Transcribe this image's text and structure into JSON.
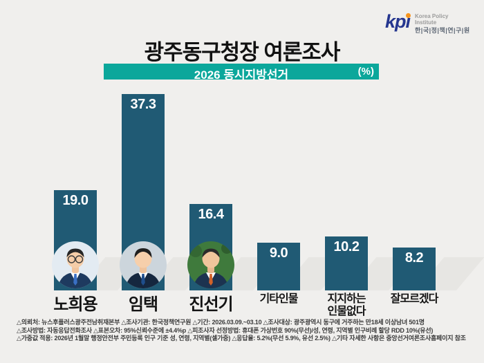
{
  "logo": {
    "acronym": "kp",
    "acronym_i": "ı",
    "name_en_line1": "Korea Policy",
    "name_en_line2": "Institute",
    "name_kr": "한|국|정|책|연|구|원",
    "brand_blue": "#25368f",
    "brand_orange": "#f7941d"
  },
  "header": {
    "title": "광주동구청장 여론조사",
    "banner_label": "2026 동시지방선거",
    "unit": "(%)",
    "banner_color": "#0ba79b"
  },
  "chart_data": {
    "type": "bar",
    "title": "광주동구청장 여론조사",
    "subtitle": "2026 동시지방선거",
    "unit": "%",
    "categories": [
      "노희용",
      "임택",
      "진선기",
      "기타인물",
      "지지하는 인물없다",
      "잘모르겠다"
    ],
    "values": [
      19.0,
      37.3,
      16.4,
      9.0,
      10.2,
      8.2
    ],
    "value_labels": [
      "19.0",
      "37.3",
      "16.4",
      "9.0",
      "10.2",
      "8.2"
    ],
    "display_labels": [
      "노희용",
      "임택",
      "진선기",
      "기타인물",
      "지지하는\n인물없다",
      "잘모르겠다"
    ],
    "has_photo": [
      true,
      true,
      true,
      false,
      false,
      false
    ],
    "bar_color": "#205a74",
    "value_label_color": "#ffffff",
    "ylim": [
      0,
      40
    ],
    "grid": false,
    "legend": "none"
  },
  "footnotes": [
    "△의뢰처: 뉴스후플러스광주전남취재본부  △조사기관: 한국정책연구원  △기간: 2026.03.09.~03.10  △조사대상: 광주광역시 동구에 거주하는  만18세 이상남녀 501명",
    "△조사방법: 자동응답전화조사   △표본오차: 95%신뢰수준에 ±4.4%p   △피조사자 선정방법: 휴대폰 가상번호 90%(무선)/성, 연령, 지역별 인구비례 할당 RDD 10%(유선)",
    "△가중값 적용: 2026년 1월말 행정안전부 주민등록 인구 기준 성, 연령, 지역별(셀가중)  △응답율: 5.2%(무선 5.9%, 유선 2.5%)  △기타 자세한 사항은 중앙선거여론조사홈페이지 참조"
  ]
}
